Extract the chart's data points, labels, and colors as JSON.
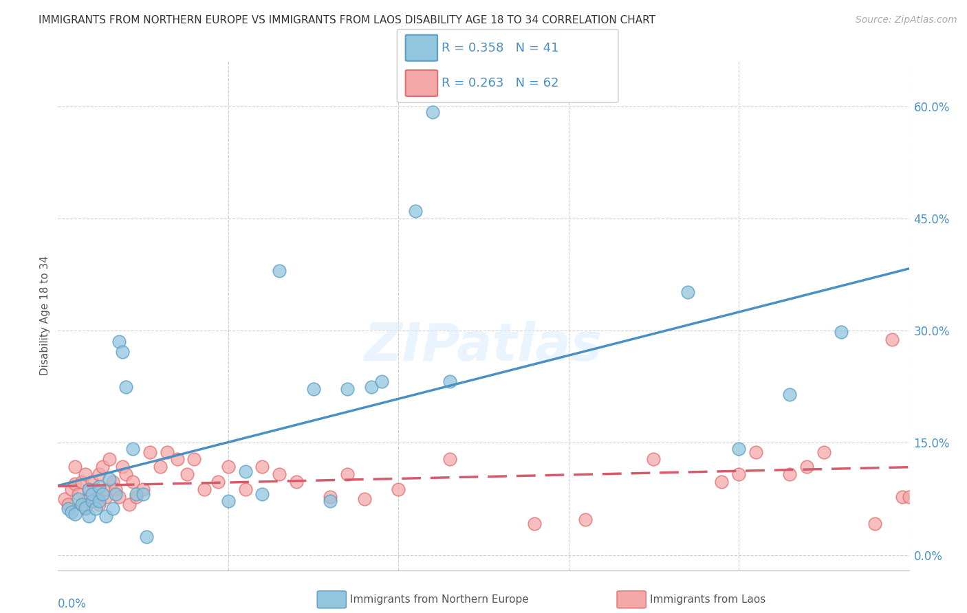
{
  "title": "IMMIGRANTS FROM NORTHERN EUROPE VS IMMIGRANTS FROM LAOS DISABILITY AGE 18 TO 34 CORRELATION CHART",
  "source": "Source: ZipAtlas.com",
  "ylabel": "Disability Age 18 to 34",
  "ylabel_ticks": [
    "0.0%",
    "15.0%",
    "30.0%",
    "45.0%",
    "60.0%"
  ],
  "ytick_vals": [
    0.0,
    0.15,
    0.3,
    0.45,
    0.6
  ],
  "xlim": [
    0.0,
    0.25
  ],
  "ylim": [
    -0.02,
    0.66
  ],
  "legend1_R": "0.358",
  "legend1_N": "41",
  "legend2_R": "0.263",
  "legend2_N": "62",
  "color_blue": "#92c5de",
  "color_blue_edge": "#5a9fc4",
  "color_blue_line": "#4a90c4",
  "color_pink": "#f4a9a8",
  "color_pink_edge": "#e07070",
  "color_pink_line": "#d45b6a",
  "watermark": "ZIPatlas",
  "blue_points_x": [
    0.003,
    0.004,
    0.005,
    0.006,
    0.007,
    0.008,
    0.009,
    0.009,
    0.01,
    0.01,
    0.011,
    0.012,
    0.012,
    0.013,
    0.014,
    0.015,
    0.016,
    0.017,
    0.018,
    0.019,
    0.02,
    0.022,
    0.023,
    0.025,
    0.026,
    0.05,
    0.055,
    0.06,
    0.065,
    0.075,
    0.08,
    0.085,
    0.092,
    0.095,
    0.105,
    0.11,
    0.115,
    0.185,
    0.2,
    0.215,
    0.23
  ],
  "blue_points_y": [
    0.062,
    0.058,
    0.055,
    0.075,
    0.068,
    0.063,
    0.088,
    0.052,
    0.072,
    0.082,
    0.062,
    0.072,
    0.092,
    0.082,
    0.052,
    0.102,
    0.062,
    0.082,
    0.285,
    0.272,
    0.225,
    0.142,
    0.082,
    0.082,
    0.025,
    0.072,
    0.112,
    0.082,
    0.38,
    0.222,
    0.072,
    0.222,
    0.225,
    0.232,
    0.46,
    0.592,
    0.232,
    0.352,
    0.142,
    0.215,
    0.298
  ],
  "pink_points_x": [
    0.002,
    0.003,
    0.004,
    0.005,
    0.005,
    0.006,
    0.007,
    0.007,
    0.008,
    0.008,
    0.009,
    0.009,
    0.01,
    0.01,
    0.011,
    0.011,
    0.012,
    0.012,
    0.013,
    0.014,
    0.014,
    0.015,
    0.016,
    0.017,
    0.018,
    0.019,
    0.02,
    0.021,
    0.022,
    0.023,
    0.025,
    0.027,
    0.03,
    0.032,
    0.035,
    0.038,
    0.04,
    0.043,
    0.047,
    0.05,
    0.055,
    0.06,
    0.065,
    0.07,
    0.08,
    0.085,
    0.09,
    0.1,
    0.115,
    0.14,
    0.155,
    0.175,
    0.195,
    0.2,
    0.205,
    0.215,
    0.22,
    0.225,
    0.24,
    0.245,
    0.248,
    0.25
  ],
  "pink_points_y": [
    0.075,
    0.068,
    0.088,
    0.095,
    0.118,
    0.082,
    0.068,
    0.098,
    0.062,
    0.108,
    0.075,
    0.088,
    0.072,
    0.098,
    0.088,
    0.075,
    0.108,
    0.068,
    0.118,
    0.078,
    0.088,
    0.128,
    0.098,
    0.088,
    0.078,
    0.118,
    0.108,
    0.068,
    0.098,
    0.078,
    0.088,
    0.138,
    0.118,
    0.138,
    0.128,
    0.108,
    0.128,
    0.088,
    0.098,
    0.118,
    0.088,
    0.118,
    0.108,
    0.098,
    0.078,
    0.108,
    0.075,
    0.088,
    0.128,
    0.042,
    0.048,
    0.128,
    0.098,
    0.108,
    0.138,
    0.108,
    0.118,
    0.138,
    0.042,
    0.288,
    0.078,
    0.078
  ]
}
